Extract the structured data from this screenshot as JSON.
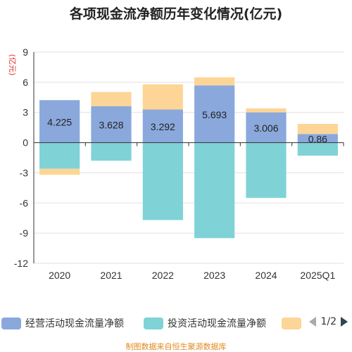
{
  "title": "各项现金流净额历年变化情况(亿元)",
  "unit": "(亿元)",
  "source": "制图数据来自恒生聚源数据库",
  "legend": {
    "items": [
      "经营活动现金流量净额",
      "投资活动现金流量净额",
      ""
    ],
    "page": "1/2"
  },
  "colors": {
    "operating": "#8aa8dc",
    "investing": "#7fd3d6",
    "financing": "#fdd596",
    "axis": "#333333",
    "grid": "#e0e0e0",
    "unit": "#e03030"
  },
  "chart_data": {
    "type": "bar",
    "stacked": true,
    "categories": [
      "2020",
      "2021",
      "2022",
      "2023",
      "2024",
      "2025Q1"
    ],
    "ylim": [
      -12,
      9
    ],
    "yticks": [
      9,
      6,
      3,
      0,
      -3,
      -6,
      -9,
      -12
    ],
    "grid": true,
    "legend_position": "bottom",
    "series": [
      {
        "name": "经营活动现金流量净额",
        "values": [
          4.225,
          3.628,
          3.292,
          5.693,
          3.006,
          0.86
        ],
        "labels": [
          "4.225",
          "3.628",
          "3.292",
          "5.693",
          "3.006",
          "0.86"
        ]
      },
      {
        "name": "投资活动现金流量净额",
        "values": [
          -2.6,
          -1.8,
          -7.7,
          -9.5,
          -5.5,
          -1.3
        ]
      },
      {
        "values": [
          -0.6,
          1.4,
          2.5,
          0.8,
          0.4,
          1.0
        ]
      }
    ]
  }
}
